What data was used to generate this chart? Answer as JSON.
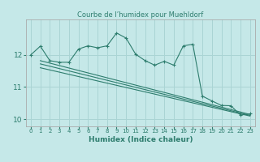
{
  "title": "Courbe de l’humidex pour Muehldorf",
  "xlabel": "Humidex (Indice chaleur)",
  "background_color": "#c5e8e8",
  "grid_color": "#aad4d4",
  "line_color": "#2e7d6e",
  "xlim": [
    -0.5,
    23.5
  ],
  "ylim": [
    9.78,
    13.1
  ],
  "yticks": [
    10,
    11,
    12
  ],
  "xticks": [
    0,
    1,
    2,
    3,
    4,
    5,
    6,
    7,
    8,
    9,
    10,
    11,
    12,
    13,
    14,
    15,
    16,
    17,
    18,
    19,
    20,
    21,
    22,
    23
  ],
  "main_series": {
    "x": [
      0,
      1,
      2,
      3,
      4,
      5,
      6,
      7,
      8,
      9,
      10,
      11,
      12,
      13,
      14,
      15,
      16,
      17,
      18,
      19,
      20,
      21,
      22,
      23
    ],
    "y": [
      12.0,
      12.27,
      11.82,
      11.77,
      11.77,
      12.18,
      12.28,
      12.22,
      12.28,
      12.68,
      12.52,
      12.02,
      11.82,
      11.68,
      11.8,
      11.68,
      12.28,
      12.33,
      10.72,
      10.57,
      10.43,
      10.42,
      10.13,
      10.17
    ]
  },
  "trend_lines": [
    {
      "x": [
        1,
        23
      ],
      "y": [
        11.82,
        10.15
      ]
    },
    {
      "x": [
        1,
        23
      ],
      "y": [
        11.72,
        10.12
      ]
    },
    {
      "x": [
        1,
        23
      ],
      "y": [
        11.6,
        10.1
      ]
    }
  ]
}
